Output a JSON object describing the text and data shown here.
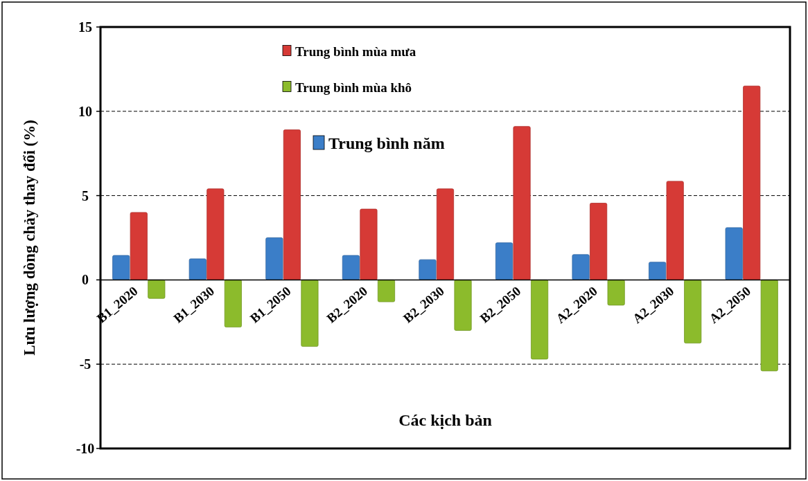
{
  "chart_data": {
    "type": "bar",
    "xlabel": "Các kịch bản",
    "ylabel": "Lưu lượng dòng chảy thay đổi (%)",
    "categories": [
      "B1_2020",
      "B1_2030",
      "B1_2050",
      "B2_2020",
      "B2_2030",
      "B2_2050",
      "A2_2020",
      "A2_2030",
      "A2_2050"
    ],
    "series": [
      {
        "name": "Trung bình năm",
        "color": "#3b7ec8",
        "values": [
          1.45,
          1.25,
          2.5,
          1.45,
          1.2,
          2.2,
          1.5,
          1.05,
          3.1
        ]
      },
      {
        "name": "Trung bình mùa mưa",
        "color": "#d63a36",
        "values": [
          4.0,
          5.4,
          8.9,
          4.2,
          5.4,
          9.1,
          4.55,
          5.85,
          11.5
        ]
      },
      {
        "name": "Trung bình mùa khô",
        "color": "#8cbb2c",
        "values": [
          -1.1,
          -2.8,
          -3.95,
          -1.3,
          -3.0,
          -4.7,
          -1.5,
          -3.75,
          -5.4
        ]
      }
    ],
    "ylim": [
      -10,
      15
    ],
    "yticks": [
      -10,
      -5,
      0,
      5,
      10,
      15
    ],
    "grid": "y",
    "legend": "top"
  }
}
